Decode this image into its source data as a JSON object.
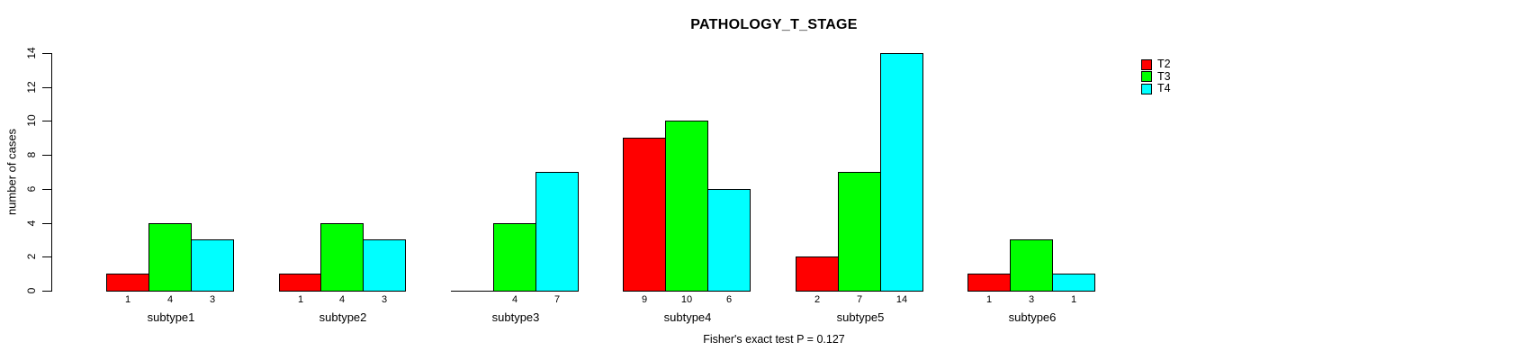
{
  "title": "PATHOLOGY_T_STAGE",
  "ylabel": "number of cases",
  "footer": "Fisher's exact test P = 0.127",
  "legend": {
    "items": [
      {
        "label": "T2",
        "color": "#FF0000"
      },
      {
        "label": "T3",
        "color": "#00FF00"
      },
      {
        "label": "T4",
        "color": "#00FFFF"
      }
    ]
  },
  "chart_data": {
    "type": "bar",
    "title": "PATHOLOGY_T_STAGE",
    "xlabel": "",
    "ylabel": "number of cases",
    "categories": [
      "subtype1",
      "subtype2",
      "subtype3",
      "subtype4",
      "subtype5",
      "subtype6"
    ],
    "series": [
      {
        "name": "T2",
        "color": "#FF0000",
        "values": [
          1,
          1,
          0,
          9,
          2,
          1
        ]
      },
      {
        "name": "T3",
        "color": "#00FF00",
        "values": [
          4,
          4,
          4,
          10,
          7,
          3
        ]
      },
      {
        "name": "T4",
        "color": "#00FFFF",
        "values": [
          3,
          3,
          7,
          6,
          14,
          1
        ]
      }
    ],
    "ylim": [
      0,
      14
    ],
    "yticks": [
      0,
      2,
      4,
      6,
      8,
      10,
      12,
      14
    ],
    "grid": false,
    "bar_value_labels_shown": true,
    "zero_bars_unlabeled": true,
    "legend_position": "top-right",
    "annotation": "Fisher's exact test P = 0.127"
  }
}
